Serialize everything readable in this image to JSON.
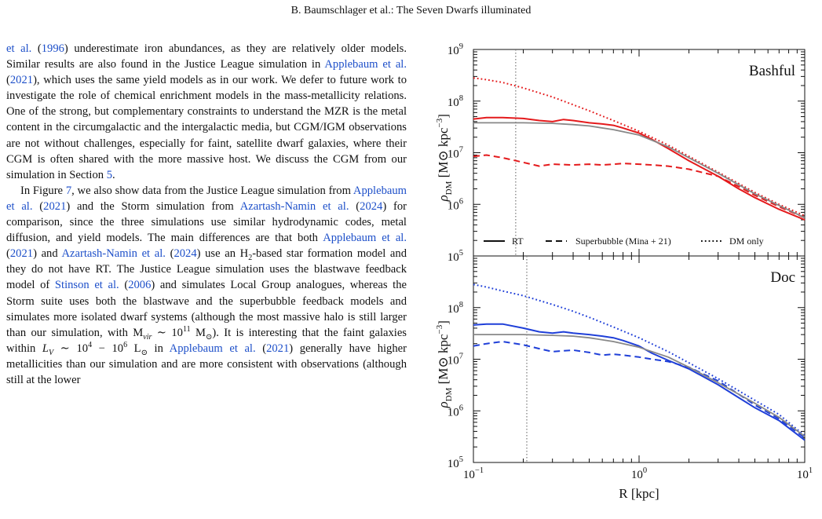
{
  "header": "B. Baumschlager et al.: The Seven Dwarfs illuminated",
  "para1": [
    {
      "t": "et al.",
      "c": 1
    },
    {
      "t": " ("
    },
    {
      "t": "1996",
      "c": 1
    },
    {
      "t": ") underestimate iron abundances, as they are relatively older models. Similar results are also found in the Justice League simulation in "
    },
    {
      "t": "Applebaum et al.",
      "c": 1
    },
    {
      "t": " ("
    },
    {
      "t": "2021",
      "c": 1
    },
    {
      "t": "), which uses the same yield models as in our work. We defer to future work to investigate the role of chemical enrichment models in the mass-metallicity relations. One of the strong, but complementary constraints to understand the MZR is the metal content in the circumgalactic and the intergalactic media, but CGM/IGM observations are not without challenges, especially for faint, satellite dwarf galaxies, where their CGM is often shared with the more massive host. We discuss the CGM from our simulation in Section "
    },
    {
      "t": "5",
      "c": 1
    },
    {
      "t": "."
    }
  ],
  "para2": [
    {
      "t": "In Figure "
    },
    {
      "t": "7",
      "c": 1
    },
    {
      "t": ", we also show data from the Justice League simulation from "
    },
    {
      "t": "Applebaum et al.",
      "c": 1
    },
    {
      "t": " ("
    },
    {
      "t": "2021",
      "c": 1
    },
    {
      "t": ") and the Storm simulation from "
    },
    {
      "t": "Azartash-Namin et al.",
      "c": 1
    },
    {
      "t": " ("
    },
    {
      "t": "2024",
      "c": 1
    },
    {
      "t": ") for comparison, since the three simulations use similar hydrodynamic codes, metal diffusion, and yield models. The main differences are that both "
    },
    {
      "t": "Applebaum et al.",
      "c": 1
    },
    {
      "t": " ("
    },
    {
      "t": "2021",
      "c": 1
    },
    {
      "t": ") and "
    },
    {
      "t": "Azartash-Namin et al.",
      "c": 1
    },
    {
      "t": " ("
    },
    {
      "t": "2024",
      "c": 1
    },
    {
      "t": ") use an H"
    },
    {
      "t": "2",
      "sub": 1
    },
    {
      "t": "-based star formation model and they do not have RT. The Justice League simulation uses the blastwave feedback model of "
    },
    {
      "t": "Stinson et al.",
      "c": 1
    },
    {
      "t": " ("
    },
    {
      "t": "2006",
      "c": 1
    },
    {
      "t": ") and simulates Local Group analogues, whereas the Storm suite uses both the blastwave and the superbubble feedback models and simulates more isolated dwarf systems (although the most massive halo is still larger than our simulation, with M"
    },
    {
      "t": "vir",
      "sub": 1,
      "i": 1
    },
    {
      "t": " ∼ 10"
    },
    {
      "t": "11",
      "sup": 1
    },
    {
      "t": " M"
    },
    {
      "t": "⊙",
      "sub": 1
    },
    {
      "t": "). It is interesting that the faint galaxies within "
    },
    {
      "t": "L",
      "i": 1
    },
    {
      "t": "V",
      "sub": 1,
      "i": 1
    },
    {
      "t": " ∼ 10"
    },
    {
      "t": "4",
      "sup": 1
    },
    {
      "t": " − 10"
    },
    {
      "t": "6",
      "sup": 1
    },
    {
      "t": " L"
    },
    {
      "t": "⊙",
      "sub": 1
    },
    {
      "t": " in "
    },
    {
      "t": "Applebaum et al.",
      "c": 1
    },
    {
      "t": " ("
    },
    {
      "t": "2021",
      "c": 1
    },
    {
      "t": ") generally have higher metallicities than our simulation and are more consistent with observations (although still at the lower"
    }
  ],
  "figure": {
    "xlabel": "R [kpc]",
    "ylabel_main": "ρ",
    "ylabel_sub": "DM",
    "ylabel_units": "[M⊙ kpc",
    "ylabel_exp": "−3",
    "ylabel_close": "]",
    "x_ticks": [
      {
        "b": "10",
        "e": "−1"
      },
      {
        "b": "10",
        "e": "0"
      },
      {
        "b": "10",
        "e": "1"
      }
    ],
    "y_ticks": [
      {
        "b": "10",
        "e": "5"
      },
      {
        "b": "10",
        "e": "6"
      },
      {
        "b": "10",
        "e": "7"
      },
      {
        "b": "10",
        "e": "8"
      },
      {
        "b": "10",
        "e": "9"
      }
    ],
    "legend": [
      "RT",
      "Superbubble (Mina + 21)",
      "DM only"
    ]
  },
  "chart_data": [
    {
      "type": "line",
      "title": "Bashful",
      "xlabel": "R [kpc]",
      "ylabel": "ρDM [M⊙ kpc−3]",
      "xscale": "log",
      "yscale": "log",
      "xlim": [
        0.1,
        10
      ],
      "ylim": [
        100000,
        1000000000
      ],
      "vline": 0.18,
      "legend_position": "bottom",
      "series": [
        {
          "name": "RT",
          "style": "solid",
          "color": "#e41a1c",
          "x": [
            0.1,
            0.12,
            0.15,
            0.2,
            0.25,
            0.3,
            0.35,
            0.4,
            0.5,
            0.6,
            0.7,
            0.8,
            1.0,
            1.2,
            1.5,
            2,
            3,
            4,
            5,
            7,
            10
          ],
          "y": [
            45000000.0,
            48000000.0,
            48000000.0,
            46000000.0,
            42000000.0,
            40000000.0,
            44000000.0,
            42000000.0,
            38000000.0,
            36000000.0,
            34000000.0,
            30000000.0,
            24000000.0,
            18000000.0,
            12000000.0,
            7000000.0,
            3500000.0,
            2000000.0,
            1350000.0,
            800000.0,
            500000.0
          ]
        },
        {
          "name": "Superbubble (Mina + 21)",
          "style": "dashed",
          "color": "#e41a1c",
          "x": [
            0.1,
            0.12,
            0.15,
            0.2,
            0.25,
            0.3,
            0.4,
            0.5,
            0.6,
            0.7,
            0.8,
            1.0,
            1.2,
            1.5,
            2,
            3,
            4,
            5,
            7,
            10
          ],
          "y": [
            8500000.0,
            9000000.0,
            8000000.0,
            6500000.0,
            5500000.0,
            6000000.0,
            5800000.0,
            6000000.0,
            5800000.0,
            6000000.0,
            6200000.0,
            6000000.0,
            5800000.0,
            5500000.0,
            4800000.0,
            3500000.0,
            2200000.0,
            1500000.0,
            900000.0,
            550000.0
          ]
        },
        {
          "name": "DM only",
          "style": "dotted",
          "color": "#e41a1c",
          "x": [
            0.1,
            0.12,
            0.15,
            0.2,
            0.3,
            0.4,
            0.5,
            0.7,
            1.0,
            1.5,
            2,
            3,
            5,
            7,
            10
          ],
          "y": [
            280000000.0,
            260000000.0,
            230000000.0,
            180000000.0,
            120000000.0,
            85000000.0,
            65000000.0,
            42000000.0,
            26000000.0,
            14000000.0,
            8500000.0,
            4200000.0,
            1700000.0,
            1000000.0,
            600000.0
          ]
        },
        {
          "name": "",
          "style": "solid",
          "color": "#888888",
          "x": [
            0.1,
            0.15,
            0.2,
            0.3,
            0.4,
            0.5,
            0.7,
            1.0,
            1.5,
            2,
            3,
            5,
            7,
            10
          ],
          "y": [
            38000000.0,
            38000000.0,
            38000000.0,
            37000000.0,
            35000000.0,
            33000000.0,
            28000000.0,
            22000000.0,
            13000000.0,
            8000000.0,
            4000000.0,
            1600000.0,
            950000.0,
            550000.0
          ]
        }
      ]
    },
    {
      "type": "line",
      "title": "Doc",
      "xlabel": "R [kpc]",
      "ylabel": "ρDM [M⊙ kpc−3]",
      "xscale": "log",
      "yscale": "log",
      "xlim": [
        0.1,
        10
      ],
      "ylim": [
        100000,
        1000000000
      ],
      "vline": 0.21,
      "series": [
        {
          "name": "RT",
          "style": "solid",
          "color": "#1f3fd8",
          "x": [
            0.1,
            0.12,
            0.15,
            0.2,
            0.25,
            0.3,
            0.35,
            0.4,
            0.5,
            0.6,
            0.7,
            0.8,
            1.0,
            1.2,
            1.5,
            2,
            3,
            4,
            5,
            7,
            10
          ],
          "y": [
            46000000.0,
            48000000.0,
            48000000.0,
            40000000.0,
            34000000.0,
            32000000.0,
            34000000.0,
            32000000.0,
            30000000.0,
            28000000.0,
            26000000.0,
            23000000.0,
            18000000.0,
            13000000.0,
            9500000.0,
            6500000.0,
            3200000.0,
            1800000.0,
            1150000.0,
            650000.0,
            270000.0
          ]
        },
        {
          "name": "Superbubble (Mina + 21)",
          "style": "dashed",
          "color": "#1f3fd8",
          "x": [
            0.1,
            0.12,
            0.15,
            0.2,
            0.25,
            0.3,
            0.4,
            0.5,
            0.6,
            0.7,
            0.8,
            1.0,
            1.2,
            1.5,
            2,
            3,
            4,
            5,
            7,
            10
          ],
          "y": [
            18000000.0,
            20000000.0,
            22000000.0,
            19000000.0,
            16000000.0,
            14000000.0,
            15000000.0,
            13500000.0,
            12000000.0,
            12500000.0,
            12000000.0,
            11000000.0,
            10000000.0,
            9000000.0,
            7000000.0,
            3800000.0,
            2100000.0,
            1300000.0,
            700000.0,
            300000.0
          ]
        },
        {
          "name": "DM only",
          "style": "dotted",
          "color": "#1f3fd8",
          "x": [
            0.1,
            0.12,
            0.15,
            0.2,
            0.3,
            0.4,
            0.5,
            0.7,
            1.0,
            1.5,
            2,
            3,
            5,
            7,
            10
          ],
          "y": [
            280000000.0,
            250000000.0,
            210000000.0,
            170000000.0,
            115000000.0,
            85000000.0,
            65000000.0,
            42000000.0,
            26000000.0,
            14000000.0,
            8500000.0,
            4200000.0,
            1600000.0,
            850000.0,
            330000.0
          ]
        },
        {
          "name": "",
          "style": "solid",
          "color": "#888888",
          "x": [
            0.1,
            0.15,
            0.2,
            0.3,
            0.4,
            0.5,
            0.7,
            1.0,
            1.5,
            2,
            3,
            5,
            7,
            10
          ],
          "y": [
            30000000.0,
            30000000.0,
            30000000.0,
            29000000.0,
            28000000.0,
            26000000.0,
            22000000.0,
            17000000.0,
            11000000.0,
            7000000.0,
            3500000.0,
            1400000.0,
            750000.0,
            320000.0
          ]
        }
      ]
    }
  ]
}
